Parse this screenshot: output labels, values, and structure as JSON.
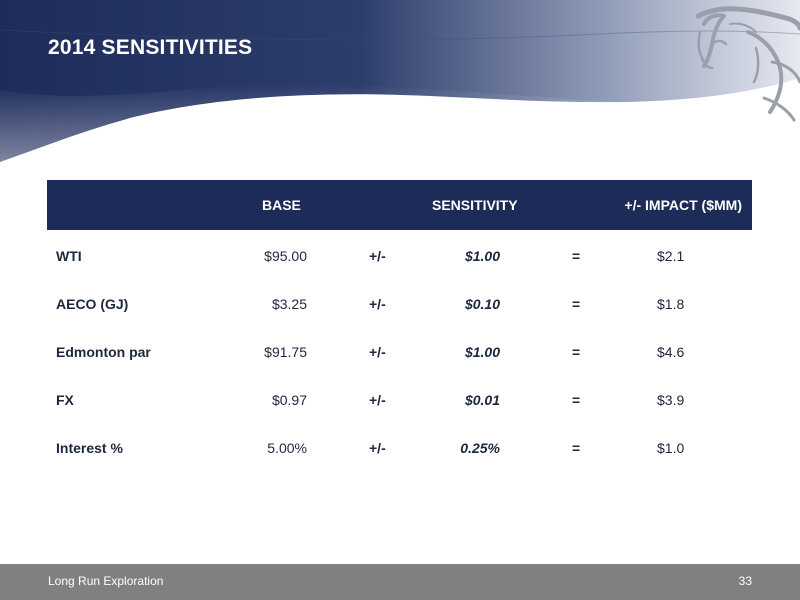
{
  "slide": {
    "title": "2014 SENSITIVITIES",
    "logo_icon": "horse-head-logo-icon"
  },
  "table": {
    "headers": {
      "blank": "",
      "base": "BASE",
      "sensitivity": "SENSITIVITY",
      "impact": "+/- IMPACT ($MM)"
    },
    "rows": [
      {
        "label": "WTI",
        "base": "$95.00",
        "plus_minus": "+/-",
        "sensitivity": "$1.00",
        "equals": "=",
        "impact": "$2.1"
      },
      {
        "label": "AECO (GJ)",
        "base": "$3.25",
        "plus_minus": "+/-",
        "sensitivity": "$0.10",
        "equals": "=",
        "impact": "$1.8"
      },
      {
        "label": "Edmonton par",
        "base": "$91.75",
        "plus_minus": "+/-",
        "sensitivity": "$1.00",
        "equals": "=",
        "impact": "$4.6"
      },
      {
        "label": "FX",
        "base": "$0.97",
        "plus_minus": "+/-",
        "sensitivity": "$0.01",
        "equals": "=",
        "impact": "$3.9"
      },
      {
        "label": "Interest %",
        "base": "5.00%",
        "plus_minus": "+/-",
        "sensitivity": "0.25%",
        "equals": "=",
        "impact": "$1.0"
      }
    ]
  },
  "footer": {
    "company": "Long Run Exploration",
    "page_number": "33"
  },
  "colors": {
    "header_navy": "#1c2b57",
    "footer_gray": "#808080",
    "text_dark": "#1c2740"
  }
}
